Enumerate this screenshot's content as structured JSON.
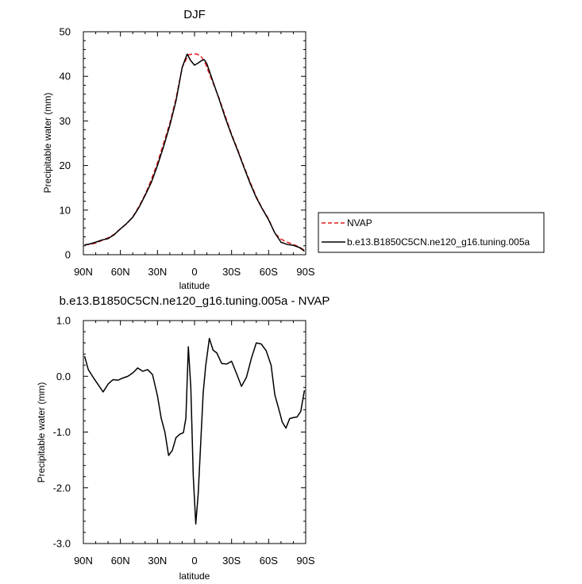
{
  "chart_data": [
    {
      "type": "line",
      "title": "DJF",
      "xlabel": "latitude",
      "ylabel": "Precipitable water (mm)",
      "xlim": [
        90,
        -90
      ],
      "ylim": [
        0,
        50
      ],
      "xticks": [
        90,
        60,
        30,
        0,
        -30,
        -60,
        -90
      ],
      "xtick_labels": [
        "90N",
        "60N",
        "30N",
        "0",
        "30S",
        "60S",
        "90S"
      ],
      "yticks": [
        0,
        10,
        20,
        30,
        40,
        50
      ],
      "ytick_labels": [
        "0",
        "10",
        "20",
        "30",
        "40",
        "50"
      ],
      "legend": "right",
      "series": [
        {
          "name": "NVAP",
          "color": "#e41a1c",
          "dash": "dashed",
          "x": [
            89,
            85,
            80,
            75,
            70,
            65,
            60,
            55,
            50,
            45,
            40,
            35,
            30,
            25,
            20,
            15,
            10,
            5,
            2,
            0,
            -2,
            -5,
            -8,
            -10,
            -15,
            -20,
            -25,
            -30,
            -35,
            -40,
            -45,
            -50,
            -55,
            -60,
            -65,
            -70,
            -75,
            -80,
            -85,
            -89
          ],
          "y": [
            2.2,
            2.3,
            2.6,
            3.2,
            3.8,
            4.6,
            5.8,
            6.9,
            8.5,
            10.8,
            13.5,
            16.8,
            20.6,
            25.0,
            29.5,
            35.0,
            42.0,
            44.8,
            45.0,
            45.0,
            45.0,
            44.5,
            43.5,
            42.0,
            38.5,
            35.0,
            31.0,
            27.0,
            23.5,
            19.8,
            16.3,
            13.0,
            10.3,
            8.0,
            4.8,
            3.5,
            2.8,
            2.3,
            1.7,
            1.0
          ]
        },
        {
          "name": "b.e13.B1850C5CN.ne120_g16.tuning.005a",
          "color": "#000000",
          "dash": "solid",
          "x": [
            89,
            85,
            80,
            75,
            70,
            65,
            60,
            55,
            50,
            45,
            40,
            35,
            30,
            25,
            20,
            15,
            10,
            6,
            3,
            0,
            -3,
            -6,
            -8,
            -10,
            -15,
            -20,
            -25,
            -30,
            -35,
            -40,
            -45,
            -50,
            -55,
            -60,
            -65,
            -70,
            -75,
            -80,
            -85,
            -89
          ],
          "y": [
            2.2,
            2.4,
            2.8,
            3.3,
            3.6,
            4.5,
            5.8,
            7.0,
            8.4,
            10.6,
            13.3,
            16.2,
            20.0,
            24.3,
            29.0,
            34.5,
            42.0,
            45.0,
            43.5,
            42.5,
            43.0,
            43.6,
            43.7,
            42.8,
            38.8,
            34.8,
            30.6,
            26.8,
            23.3,
            19.6,
            16.0,
            12.8,
            10.2,
            7.8,
            4.9,
            2.8,
            2.3,
            2.1,
            1.6,
            0.8
          ]
        }
      ]
    },
    {
      "type": "line",
      "title": "b.e13.B1850C5CN.ne120_g16.tuning.005a - NVAP",
      "xlabel": "latitude",
      "ylabel": "Precipitable water (mm)",
      "xlim": [
        90,
        -90
      ],
      "ylim": [
        -3,
        1
      ],
      "xticks": [
        90,
        60,
        30,
        0,
        -30,
        -60,
        -90
      ],
      "xtick_labels": [
        "90N",
        "60N",
        "30N",
        "0",
        "30S",
        "60S",
        "90S"
      ],
      "yticks": [
        1,
        0,
        -1,
        -2,
        -3
      ],
      "ytick_labels": [
        "1.0",
        "0.0",
        "-1.0",
        "-2.0",
        "-3.0"
      ],
      "series": [
        {
          "color": "#000000",
          "dash": "solid",
          "x": [
            89,
            86,
            82,
            78,
            74,
            70,
            66,
            62,
            58,
            54,
            50,
            46,
            42,
            38,
            34,
            30,
            27,
            24,
            21,
            18,
            15,
            12,
            9,
            7,
            5,
            3,
            1,
            -1,
            -3,
            -5,
            -7,
            -9,
            -12,
            -15,
            -18,
            -22,
            -26,
            -30,
            -34,
            -38,
            -42,
            -46,
            -50,
            -54,
            -58,
            -62,
            -65,
            -68,
            -71,
            -74,
            -77,
            -80,
            -83,
            -86,
            -89
          ],
          "y": [
            0.36,
            0.12,
            -0.02,
            -0.15,
            -0.28,
            -0.14,
            -0.06,
            -0.07,
            -0.03,
            0.0,
            0.06,
            0.15,
            0.09,
            0.12,
            0.03,
            -0.35,
            -0.75,
            -1.0,
            -1.42,
            -1.33,
            -1.1,
            -1.04,
            -1.01,
            -0.75,
            0.53,
            -0.2,
            -1.8,
            -2.65,
            -2.1,
            -1.2,
            -0.3,
            0.18,
            0.68,
            0.47,
            0.42,
            0.23,
            0.22,
            0.27,
            0.05,
            -0.18,
            -0.02,
            0.32,
            0.6,
            0.58,
            0.46,
            0.2,
            -0.33,
            -0.57,
            -0.82,
            -0.93,
            -0.76,
            -0.74,
            -0.73,
            -0.63,
            -0.25
          ]
        }
      ]
    }
  ]
}
